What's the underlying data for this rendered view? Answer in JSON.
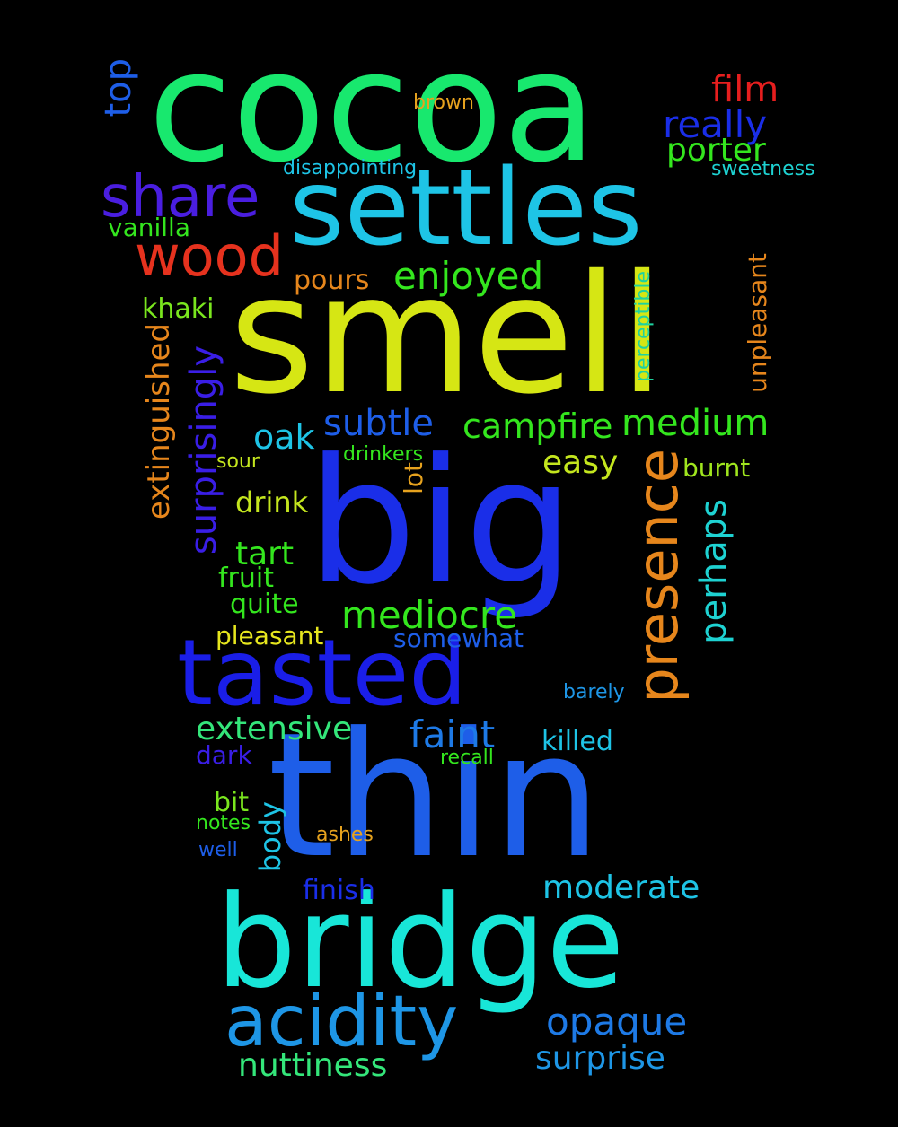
{
  "background": "#000000",
  "words": [
    {
      "text": "cocoa",
      "color": "#18e86e"
    },
    {
      "text": "settles",
      "color": "#1ec4e6"
    },
    {
      "text": "smell",
      "color": "#d6e614"
    },
    {
      "text": "big",
      "color": "#1a2ee8"
    },
    {
      "text": "thin",
      "color": "#1e5ee8"
    },
    {
      "text": "bridge",
      "color": "#18e6d8"
    },
    {
      "text": "tasted",
      "color": "#1a1ee8"
    },
    {
      "text": "acidity",
      "color": "#1e96e6"
    },
    {
      "text": "presence",
      "color": "#e6861c"
    },
    {
      "text": "share",
      "color": "#4a1ee0"
    },
    {
      "text": "wood",
      "color": "#e6321e"
    },
    {
      "text": "film",
      "color": "#e61e1e"
    },
    {
      "text": "really",
      "color": "#1a2ee8"
    },
    {
      "text": "porter",
      "color": "#34e61e"
    },
    {
      "text": "top",
      "color": "#1e5ee8"
    },
    {
      "text": "brown",
      "color": "#e6a21e"
    },
    {
      "text": "disappointing",
      "color": "#1ec4e6"
    },
    {
      "text": "sweetness",
      "color": "#1ed2d2"
    },
    {
      "text": "vanilla",
      "color": "#34e61e"
    },
    {
      "text": "enjoyed",
      "color": "#34e61e"
    },
    {
      "text": "pours",
      "color": "#e6861c"
    },
    {
      "text": "khaki",
      "color": "#7ae61e"
    },
    {
      "text": "unpleasant",
      "color": "#e6861c"
    },
    {
      "text": "perceptible",
      "color": "#1ed2a0"
    },
    {
      "text": "extinguished",
      "color": "#e6861c"
    },
    {
      "text": "surprisingly",
      "color": "#3a1ee6"
    },
    {
      "text": "subtle",
      "color": "#1e5ee8"
    },
    {
      "text": "campfire",
      "color": "#34e61e"
    },
    {
      "text": "medium",
      "color": "#34e61e"
    },
    {
      "text": "oak",
      "color": "#1ec4e6"
    },
    {
      "text": "sour",
      "color": "#c4e61e"
    },
    {
      "text": "drinkers",
      "color": "#34e61e"
    },
    {
      "text": "easy",
      "color": "#c4e61e"
    },
    {
      "text": "burnt",
      "color": "#a0e61e"
    },
    {
      "text": "lot",
      "color": "#e6a21e"
    },
    {
      "text": "drink",
      "color": "#c4e61e"
    },
    {
      "text": "perhaps",
      "color": "#1ed2d2"
    },
    {
      "text": "tart",
      "color": "#34e61e"
    },
    {
      "text": "fruit",
      "color": "#34e61e"
    },
    {
      "text": "quite",
      "color": "#34e61e"
    },
    {
      "text": "mediocre",
      "color": "#34e61e"
    },
    {
      "text": "pleasant",
      "color": "#e6e61e"
    },
    {
      "text": "somewhat",
      "color": "#1e5ee8"
    },
    {
      "text": "barely",
      "color": "#1e96e6"
    },
    {
      "text": "extensive",
      "color": "#34e67a"
    },
    {
      "text": "faint",
      "color": "#1e7ae6"
    },
    {
      "text": "killed",
      "color": "#1ec4e6"
    },
    {
      "text": "dark",
      "color": "#3a1ee6"
    },
    {
      "text": "recall",
      "color": "#34e61e"
    },
    {
      "text": "bit",
      "color": "#7ae61e"
    },
    {
      "text": "notes",
      "color": "#34e61e"
    },
    {
      "text": "body",
      "color": "#1ec4e6"
    },
    {
      "text": "ashes",
      "color": "#e6a21e"
    },
    {
      "text": "well",
      "color": "#1e5ee8"
    },
    {
      "text": "finish",
      "color": "#1a2ee8"
    },
    {
      "text": "moderate",
      "color": "#1ec4e6"
    },
    {
      "text": "opaque",
      "color": "#1e7ae6"
    },
    {
      "text": "surprise",
      "color": "#1e96e6"
    },
    {
      "text": "nuttiness",
      "color": "#34e67a"
    }
  ]
}
